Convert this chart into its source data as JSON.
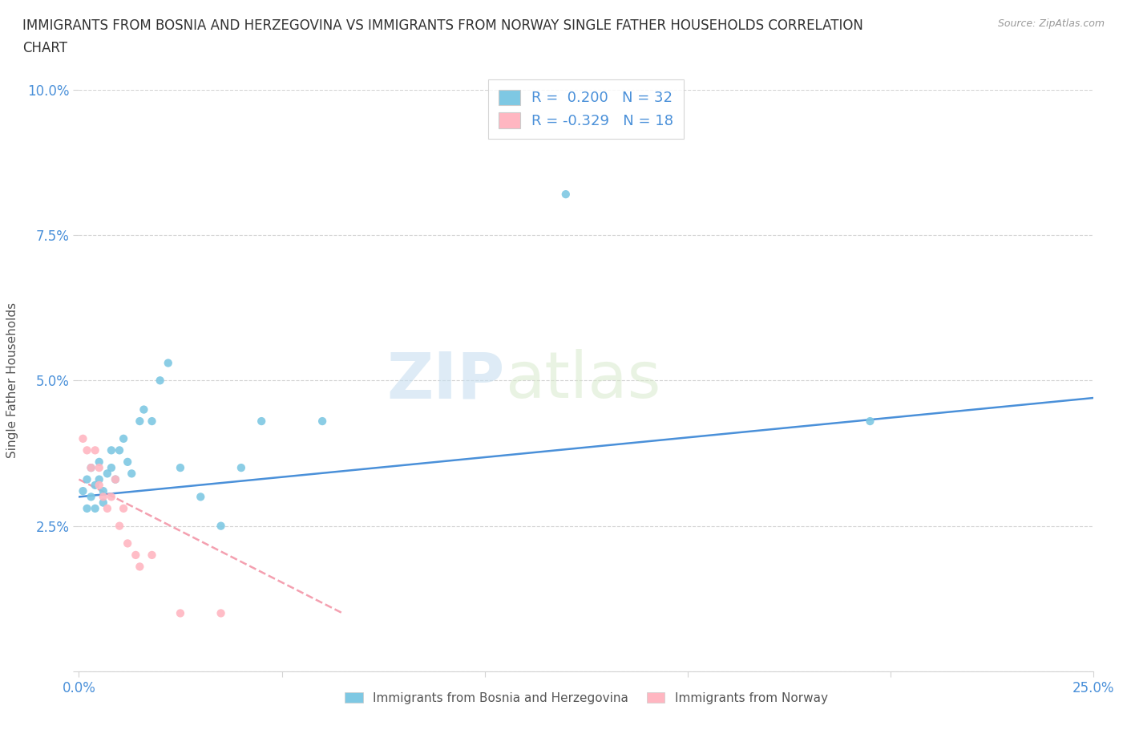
{
  "title_line1": "IMMIGRANTS FROM BOSNIA AND HERZEGOVINA VS IMMIGRANTS FROM NORWAY SINGLE FATHER HOUSEHOLDS CORRELATION",
  "title_line2": "CHART",
  "source": "Source: ZipAtlas.com",
  "ylabel": "Single Father Households",
  "xlim": [
    0.0,
    0.25
  ],
  "ylim": [
    0.0,
    0.1
  ],
  "xticks": [
    0.0,
    0.05,
    0.1,
    0.15,
    0.2,
    0.25
  ],
  "yticks": [
    0.0,
    0.025,
    0.05,
    0.075,
    0.1
  ],
  "bosnia_color": "#7ec8e3",
  "norway_color": "#ffb6c1",
  "bosnia_line_color": "#4a90d9",
  "norway_line_color": "#f4a0b0",
  "bosnia_R": 0.2,
  "bosnia_N": 32,
  "norway_R": -0.329,
  "norway_N": 18,
  "watermark_left": "ZIP",
  "watermark_right": "atlas",
  "bosnia_x": [
    0.001,
    0.002,
    0.002,
    0.003,
    0.003,
    0.004,
    0.004,
    0.005,
    0.005,
    0.006,
    0.006,
    0.007,
    0.008,
    0.008,
    0.009,
    0.01,
    0.011,
    0.012,
    0.013,
    0.015,
    0.016,
    0.018,
    0.02,
    0.022,
    0.025,
    0.03,
    0.035,
    0.04,
    0.045,
    0.06,
    0.12,
    0.195
  ],
  "bosnia_y": [
    0.031,
    0.028,
    0.033,
    0.03,
    0.035,
    0.032,
    0.028,
    0.036,
    0.033,
    0.031,
    0.029,
    0.034,
    0.038,
    0.035,
    0.033,
    0.038,
    0.04,
    0.036,
    0.034,
    0.043,
    0.045,
    0.043,
    0.05,
    0.053,
    0.035,
    0.03,
    0.025,
    0.035,
    0.043,
    0.043,
    0.082,
    0.043
  ],
  "norway_x": [
    0.001,
    0.002,
    0.003,
    0.004,
    0.005,
    0.005,
    0.006,
    0.007,
    0.008,
    0.009,
    0.01,
    0.011,
    0.012,
    0.014,
    0.015,
    0.018,
    0.025,
    0.035
  ],
  "norway_y": [
    0.04,
    0.038,
    0.035,
    0.038,
    0.032,
    0.035,
    0.03,
    0.028,
    0.03,
    0.033,
    0.025,
    0.028,
    0.022,
    0.02,
    0.018,
    0.02,
    0.01,
    0.01
  ],
  "bosnia_line_x": [
    0.0,
    0.25
  ],
  "bosnia_line_y": [
    0.03,
    0.047
  ],
  "norway_line_x": [
    0.0,
    0.065
  ],
  "norway_line_y": [
    0.033,
    0.01
  ]
}
